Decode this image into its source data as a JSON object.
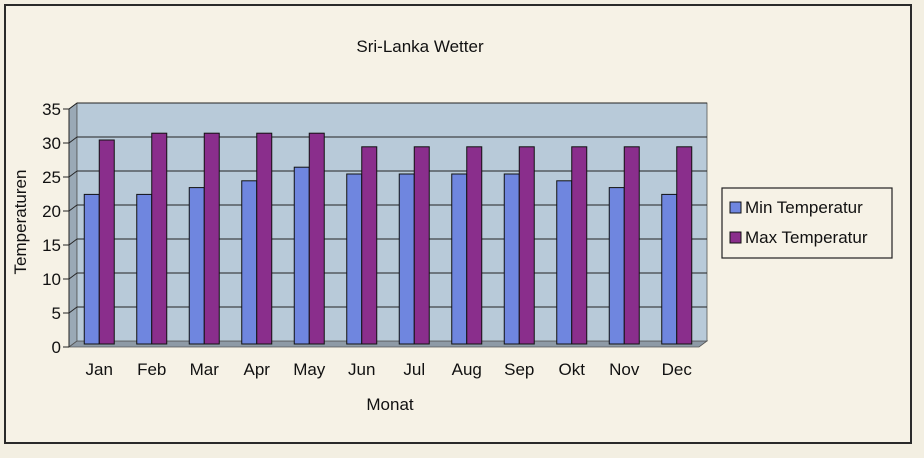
{
  "chart_data": {
    "type": "bar",
    "title": "Sri-Lanka Wetter",
    "xlabel": "Monat",
    "ylabel": "Temperaturen",
    "ylim": [
      0,
      35
    ],
    "yticks": [
      0,
      5,
      10,
      15,
      20,
      25,
      30,
      35
    ],
    "grid": true,
    "legend_position": "right",
    "categories": [
      "Jan",
      "Feb",
      "Mar",
      "Apr",
      "May",
      "Jun",
      "Jul",
      "Aug",
      "Sep",
      "Okt",
      "Nov",
      "Dec"
    ],
    "series": [
      {
        "name": "Min Temperatur",
        "color": "#6f86df",
        "values": [
          22,
          22,
          23,
          24,
          26,
          25,
          25,
          25,
          25,
          24,
          23,
          22
        ]
      },
      {
        "name": "Max Temperatur",
        "color": "#8a2e8c",
        "values": [
          30,
          31,
          31,
          31,
          31,
          29,
          29,
          29,
          29,
          29,
          29,
          29
        ]
      }
    ],
    "plot_background": "#b8cad9"
  }
}
